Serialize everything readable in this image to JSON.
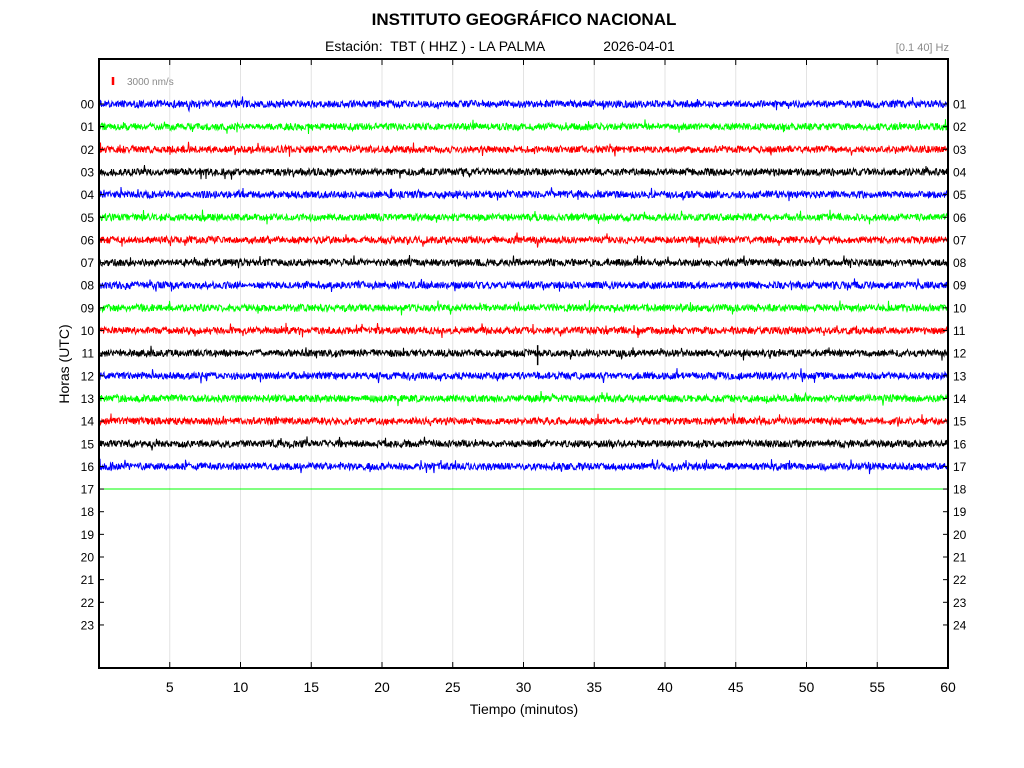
{
  "header": {
    "title": "INSTITUTO GEOGRÁFICO NACIONAL",
    "station_label": "Estación:",
    "station_value": "TBT ( HHZ ) - LA PALMA",
    "date": "2026-04-01",
    "filter": "[0.1 40] Hz"
  },
  "chart_data": {
    "type": "line",
    "subtype": "helicorder",
    "title": "INSTITUTO GEOGRÁFICO NACIONAL",
    "xlabel": "Tiempo (minutos)",
    "ylabel": "Horas (UTC)",
    "xlim": [
      0,
      60
    ],
    "x_ticks": [
      5,
      10,
      15,
      20,
      25,
      30,
      35,
      40,
      45,
      50,
      55,
      60
    ],
    "left_tick_labels": [
      "00",
      "01",
      "02",
      "03",
      "04",
      "05",
      "06",
      "07",
      "08",
      "09",
      "10",
      "11",
      "12",
      "13",
      "14",
      "15",
      "16",
      "17",
      "18",
      "19",
      "20",
      "21",
      "22",
      "23"
    ],
    "right_tick_labels": [
      "01",
      "02",
      "03",
      "04",
      "05",
      "06",
      "07",
      "08",
      "09",
      "10",
      "11",
      "12",
      "13",
      "14",
      "15",
      "16",
      "17",
      "18",
      "19",
      "20",
      "21",
      "22",
      "23",
      "24"
    ],
    "scale_label": "3000 nm/s",
    "scale_color": "#ff0000",
    "grid": true,
    "trace_colors": [
      "#0000ff",
      "#00ff00",
      "#ff0000",
      "#000000"
    ],
    "series": [
      {
        "hour": "00",
        "color": "#0000ff",
        "start_min": 0,
        "end_min": 60
      },
      {
        "hour": "01",
        "color": "#00ff00",
        "start_min": 0,
        "end_min": 60
      },
      {
        "hour": "02",
        "color": "#ff0000",
        "start_min": 0,
        "end_min": 60
      },
      {
        "hour": "03",
        "color": "#000000",
        "start_min": 0,
        "end_min": 60
      },
      {
        "hour": "04",
        "color": "#0000ff",
        "start_min": 0,
        "end_min": 60
      },
      {
        "hour": "05",
        "color": "#00ff00",
        "start_min": 0,
        "end_min": 60
      },
      {
        "hour": "06",
        "color": "#ff0000",
        "start_min": 0,
        "end_min": 60
      },
      {
        "hour": "07",
        "color": "#000000",
        "start_min": 0,
        "end_min": 60
      },
      {
        "hour": "08",
        "color": "#0000ff",
        "start_min": 0,
        "end_min": 60
      },
      {
        "hour": "09",
        "color": "#00ff00",
        "start_min": 0,
        "end_min": 60
      },
      {
        "hour": "10",
        "color": "#ff0000",
        "start_min": 0,
        "end_min": 60
      },
      {
        "hour": "11",
        "color": "#000000",
        "start_min": 0,
        "end_min": 60,
        "event_min": 31
      },
      {
        "hour": "12",
        "color": "#0000ff",
        "start_min": 0,
        "end_min": 60
      },
      {
        "hour": "13",
        "color": "#00ff00",
        "start_min": 0,
        "end_min": 60
      },
      {
        "hour": "14",
        "color": "#ff0000",
        "start_min": 0,
        "end_min": 60
      },
      {
        "hour": "15",
        "color": "#000000",
        "start_min": 0,
        "end_min": 60
      },
      {
        "hour": "16",
        "color": "#0000ff",
        "start_min": 0,
        "end_min": 60
      },
      {
        "hour": "17",
        "color": "#00ff00",
        "start_min": 0,
        "end_min": 60,
        "flat": true
      }
    ]
  }
}
